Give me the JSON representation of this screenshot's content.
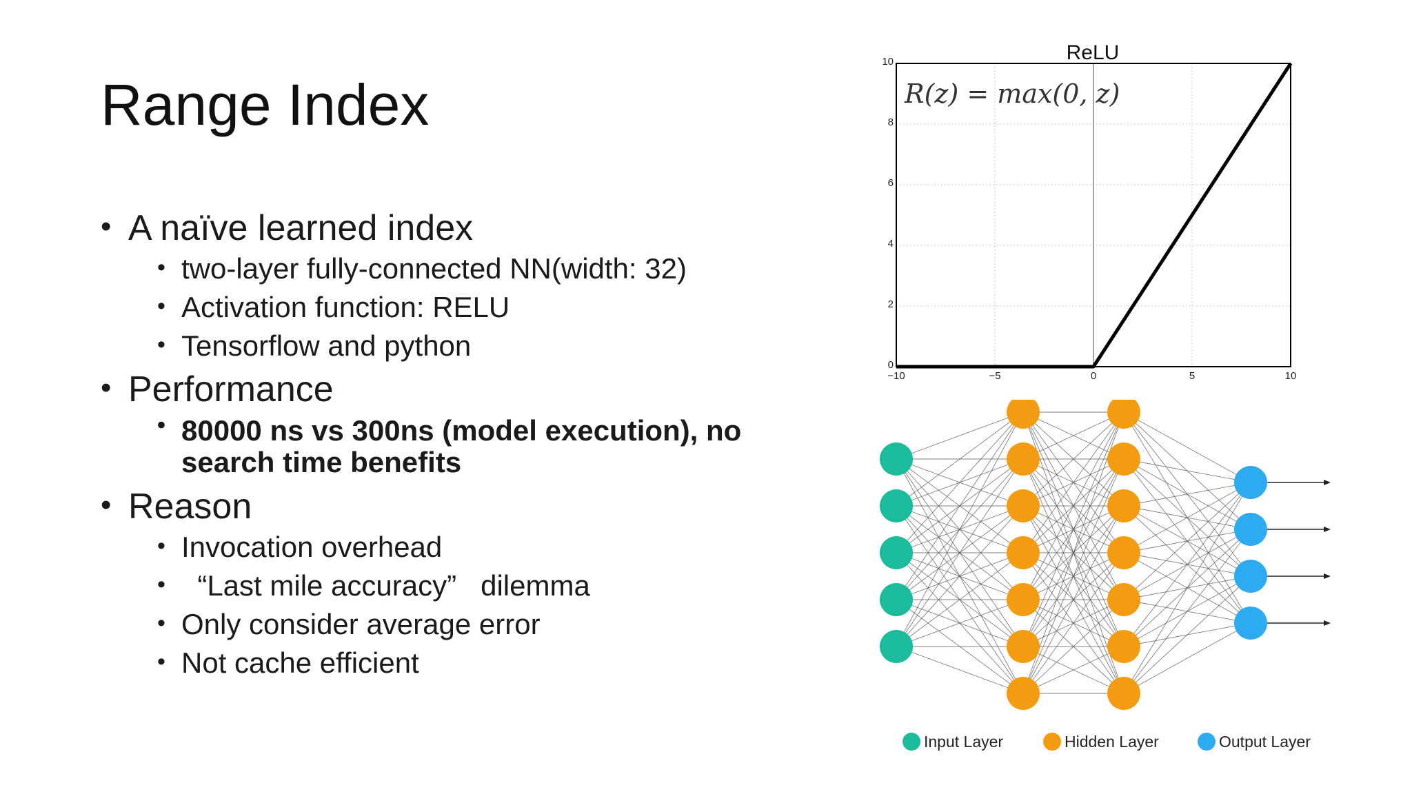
{
  "slide": {
    "title": "Range Index",
    "bullets": [
      {
        "text": "A naïve learned index",
        "sub": [
          {
            "text": "two-layer fully-connected NN(width: 32)"
          },
          {
            "text": "Activation function: RELU"
          },
          {
            "text": "Tensorflow and python"
          }
        ]
      },
      {
        "text": "Performance",
        "sub": [
          {
            "text": "80000 ns vs 300ns (model execution), no search time benefits",
            "bold": true
          }
        ]
      },
      {
        "text": "Reason",
        "sub": [
          {
            "text": "Invocation overhead"
          },
          {
            "text": "  “Last mile accuracy”   dilemma"
          },
          {
            "text": "Only consider average error"
          },
          {
            "text": "Not cache efficient"
          }
        ]
      }
    ]
  },
  "chart_data": {
    "type": "line",
    "title": "ReLU",
    "annotation": "R(z) = max(0, z)",
    "xlim": [
      -10,
      10
    ],
    "ylim": [
      0,
      10
    ],
    "xticks": [
      "−10",
      "−5",
      "0",
      "5",
      "10"
    ],
    "yticks": [
      "0",
      "2",
      "4",
      "6",
      "8",
      "10"
    ],
    "grid": true,
    "series": [
      {
        "x": [
          -10,
          0,
          10
        ],
        "y": [
          0,
          0,
          10
        ]
      }
    ],
    "colors": {
      "line": "#000000",
      "grid": "#c8c8c8"
    }
  },
  "network": {
    "layers": [
      {
        "nodes": 5,
        "color": "#1abc9c"
      },
      {
        "nodes": 7,
        "color": "#f39c12"
      },
      {
        "nodes": 7,
        "color": "#f39c12"
      },
      {
        "nodes": 4,
        "color": "#2eaaf0"
      }
    ],
    "legend": [
      {
        "label": "Input Layer",
        "color": "#1abc9c"
      },
      {
        "label": "Hidden Layer",
        "color": "#f39c12"
      },
      {
        "label": "Output Layer",
        "color": "#2eaaf0"
      }
    ]
  }
}
